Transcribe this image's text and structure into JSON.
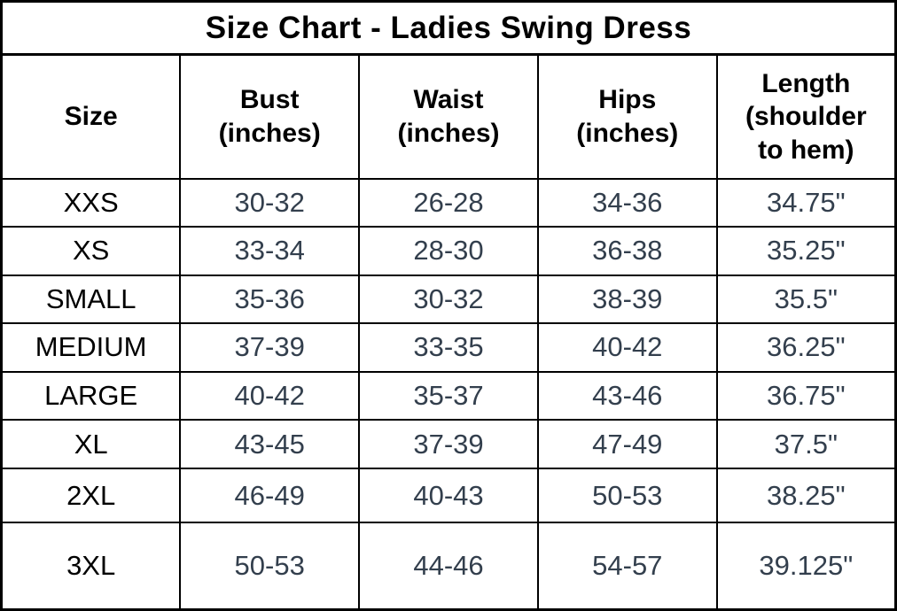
{
  "colors": {
    "background": "#ffffff",
    "border": "#000000",
    "heading_text": "#000000",
    "size_label_text": "#000000",
    "value_text": "#333f4d"
  },
  "title": "Size Chart - Ladies Swing Dress",
  "table": {
    "headers": [
      "Size",
      "Bust\n(inches)",
      "Waist\n(inches)",
      "Hips\n(inches)",
      "Length\n(shoulder\nto hem)"
    ],
    "rows": [
      {
        "size": "XXS",
        "bust": "30-32",
        "waist": "26-28",
        "hips": "34-36",
        "length": "34.75\""
      },
      {
        "size": "XS",
        "bust": "33-34",
        "waist": "28-30",
        "hips": "36-38",
        "length": "35.25\""
      },
      {
        "size": "SMALL",
        "bust": "35-36",
        "waist": "30-32",
        "hips": "38-39",
        "length": "35.5\""
      },
      {
        "size": "MEDIUM",
        "bust": "37-39",
        "waist": "33-35",
        "hips": "40-42",
        "length": "36.25\""
      },
      {
        "size": "LARGE",
        "bust": "40-42",
        "waist": "35-37",
        "hips": "43-46",
        "length": "36.75\""
      },
      {
        "size": "XL",
        "bust": "43-45",
        "waist": "37-39",
        "hips": "47-49",
        "length": "37.5\""
      },
      {
        "size": "2XL",
        "bust": "46-49",
        "waist": "40-43",
        "hips": "50-53",
        "length": "38.25\""
      },
      {
        "size": "3XL",
        "bust": "50-53",
        "waist": "44-46",
        "hips": "54-57",
        "length": "39.125\""
      }
    ]
  },
  "chart_data": {
    "type": "table",
    "title": "Size Chart - Ladies Swing Dress",
    "columns": [
      "Size",
      "Bust (inches)",
      "Waist (inches)",
      "Hips (inches)",
      "Length (shoulder to hem)"
    ],
    "rows": [
      [
        "XXS",
        "30-32",
        "26-28",
        "34-36",
        "34.75\""
      ],
      [
        "XS",
        "33-34",
        "28-30",
        "36-38",
        "35.25\""
      ],
      [
        "SMALL",
        "35-36",
        "30-32",
        "38-39",
        "35.5\""
      ],
      [
        "MEDIUM",
        "37-39",
        "33-35",
        "40-42",
        "36.25\""
      ],
      [
        "LARGE",
        "40-42",
        "35-37",
        "43-46",
        "36.75\""
      ],
      [
        "XL",
        "43-45",
        "37-39",
        "47-49",
        "37.5\""
      ],
      [
        "2XL",
        "46-49",
        "40-43",
        "50-53",
        "38.25\""
      ],
      [
        "3XL",
        "50-53",
        "44-46",
        "54-57",
        "39.125\""
      ]
    ]
  }
}
